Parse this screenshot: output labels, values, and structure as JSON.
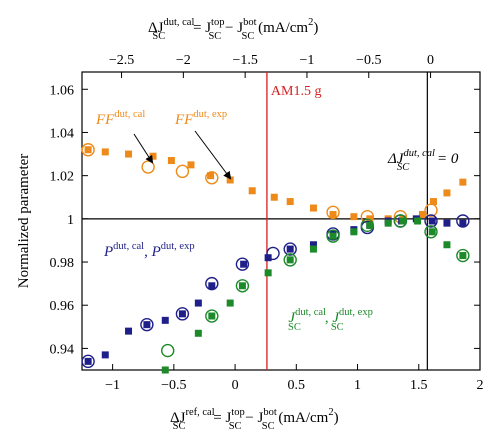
{
  "chart_data": {
    "type": "scatter",
    "x_axis_bottom": {
      "label_prefix": "ΔJ",
      "label_sup": "ref, cal",
      "label_sub": "SC",
      "label_eq": " = J",
      "label_sup2": "top",
      "label_sub2": "SC",
      "label_minus": " − J",
      "label_sup3": "bot",
      "label_sub3": "SC",
      "label_units": " (mA/cm",
      "label_units_sup": "2",
      "label_units_end": ")",
      "xlim": [
        -1.25,
        2.0
      ],
      "ticks": [
        -1,
        -0.5,
        0,
        0.5,
        1,
        1.5,
        2
      ],
      "tick_labels": [
        "−1",
        "−0.5",
        "0",
        "0.5",
        "1",
        "1.5",
        "2"
      ]
    },
    "x_axis_top": {
      "label_prefix": "ΔJ",
      "label_sup": "dut, cal",
      "label_sub": "SC",
      "label_eq": " = J",
      "label_sup2": "top",
      "label_sub2": "SC",
      "label_minus": " − J",
      "label_sup3": "bot",
      "label_sub3": "SC",
      "label_units": " (mA/cm",
      "label_units_sup": "2",
      "label_units_end": ")",
      "xlim": [
        -2.82,
        0.4
      ],
      "ticks": [
        -2.5,
        -2,
        -1.5,
        -1,
        -0.5,
        0
      ],
      "tick_labels": [
        "−2.5",
        "−2",
        "−1.5",
        "−1",
        "−0.5",
        "0"
      ]
    },
    "y_axis": {
      "label": "Normalized parameter",
      "ylim": [
        0.93,
        1.068
      ],
      "ticks": [
        0.94,
        0.96,
        0.98,
        1,
        1.02,
        1.04,
        1.06
      ],
      "tick_labels": [
        "0.94",
        "0.96",
        "0.98",
        "1",
        "1.02",
        "1.04",
        "1.06"
      ]
    },
    "reference_lines": {
      "hline_y": 1,
      "am15g_x": 0.26,
      "am15g_label": "AM1.5 g",
      "zero_x": 1.57
    },
    "colors": {
      "ff": "#ee8a1a",
      "p": "#1f1f8a",
      "j": "#1d8a2a",
      "am15g": "#d42020",
      "axis": "#000000"
    },
    "series": [
      {
        "key": "ff_cal",
        "marker": "circle-open",
        "color": "#ee8a1a",
        "x": [
          -1.2,
          -0.71,
          -0.43,
          -0.19,
          0.8,
          1.08,
          1.35,
          1.6
        ],
        "y": [
          1.032,
          1.024,
          1.022,
          1.019,
          1.003,
          1.001,
          1.001,
          1.004
        ]
      },
      {
        "key": "ff_exp",
        "marker": "square",
        "color": "#ee8a1a",
        "x": [
          -1.2,
          -1.06,
          -0.87,
          -0.67,
          -0.52,
          -0.36,
          -0.2,
          -0.04,
          0.14,
          0.32,
          0.45,
          0.64,
          0.8,
          0.97,
          1.1,
          1.25,
          1.37,
          1.53,
          1.62,
          1.73,
          1.86
        ],
        "y": [
          1.032,
          1.031,
          1.03,
          1.029,
          1.027,
          1.025,
          1.02,
          1.018,
          1.013,
          1.01,
          1.008,
          1.005,
          1.002,
          1.001,
          1.0,
          1.0,
          1.0,
          1.002,
          1.008,
          1.012,
          1.017
        ]
      },
      {
        "key": "p_cal",
        "marker": "circle-open",
        "color": "#1f1f8a",
        "x": [
          -1.2,
          -0.72,
          -0.43,
          -0.19,
          0.06,
          0.31,
          0.45,
          0.8,
          1.08,
          1.35,
          1.6,
          1.86
        ],
        "y": [
          0.934,
          0.951,
          0.956,
          0.97,
          0.979,
          0.984,
          0.986,
          0.993,
          0.996,
          0.999,
          0.999,
          0.999
        ]
      },
      {
        "key": "p_exp",
        "marker": "square",
        "color": "#1f1f8a",
        "x": [
          -1.2,
          -1.06,
          -0.87,
          -0.72,
          -0.57,
          -0.43,
          -0.3,
          -0.19,
          0.07,
          0.27,
          0.45,
          0.64,
          0.8,
          0.97,
          1.1,
          1.25,
          1.36,
          1.48,
          1.61,
          1.73,
          1.86
        ],
        "y": [
          0.934,
          0.937,
          0.948,
          0.951,
          0.953,
          0.956,
          0.961,
          0.969,
          0.979,
          0.982,
          0.986,
          0.988,
          0.993,
          0.995,
          0.997,
          0.999,
          0.999,
          1.0,
          0.999,
          0.998,
          0.998
        ]
      },
      {
        "key": "j_cal",
        "marker": "circle-open",
        "color": "#1d8a2a",
        "x": [
          -0.55,
          -0.19,
          0.06,
          0.45,
          0.8,
          1.08,
          1.35,
          1.6,
          1.86
        ],
        "y": [
          0.939,
          0.955,
          0.969,
          0.981,
          0.992,
          0.997,
          0.999,
          0.994,
          0.983
        ]
      },
      {
        "key": "j_exp",
        "marker": "square",
        "color": "#1d8a2a",
        "x": [
          -0.57,
          -0.3,
          -0.19,
          -0.04,
          0.06,
          0.27,
          0.45,
          0.64,
          0.8,
          0.97,
          1.1,
          1.25,
          1.37,
          1.49,
          1.61,
          1.73,
          1.86
        ],
        "y": [
          0.93,
          0.947,
          0.955,
          0.961,
          0.969,
          0.975,
          0.981,
          0.986,
          0.992,
          0.994,
          0.997,
          0.998,
          0.999,
          0.999,
          0.994,
          0.988,
          0.983
        ]
      }
    ],
    "annotations": {
      "ff_cal_label": {
        "base": "FF",
        "sup": "dut, cal"
      },
      "ff_exp_label": {
        "base": "FF",
        "sup": "dut, exp"
      },
      "p_label": {
        "base1": "P",
        "sup1": "dut, cal",
        "sep": ", ",
        "base2": "P",
        "sup2": "dut, exp"
      },
      "j_label": {
        "base1": "J",
        "sup1": "dut, cal",
        "sub1": "SC",
        "sep": ", ",
        "base2": "J",
        "sup2": "dut, exp",
        "sub2": "SC"
      },
      "zero_label": {
        "base": "ΔJ",
        "sup": "dut, cal",
        "sub": "SC",
        "tail": " = 0"
      }
    }
  }
}
